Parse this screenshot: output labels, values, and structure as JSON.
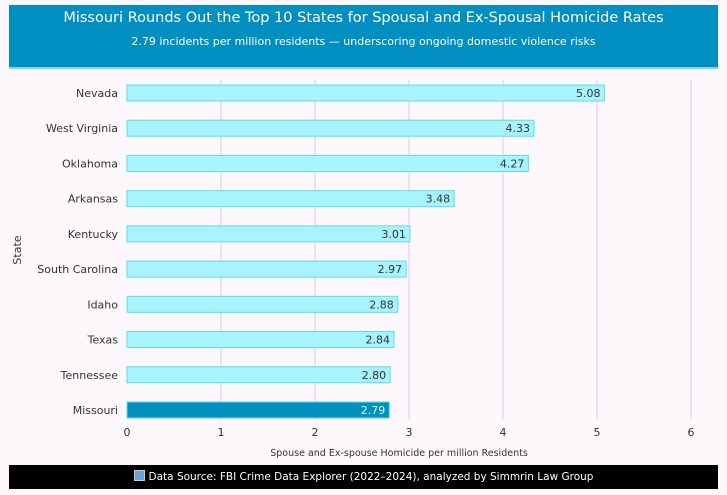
{
  "header": {
    "title": "Missouri Rounds Out the Top 10 States for Spousal and Ex-Spousal Homicide Rates",
    "subtitle": "2.79 incidents per million residents — underscoring ongoing domestic violence risks"
  },
  "footer": {
    "icon": "bar-chart-icon",
    "text": "Data Source: FBI Crime Data Explorer (2022–2024), analyzed by Simmrin Law Group"
  },
  "chart_data": {
    "type": "bar",
    "orientation": "horizontal",
    "categories": [
      "Nevada",
      "West Virginia",
      "Oklahoma",
      "Arkansas",
      "Kentucky",
      "South Carolina",
      "Idaho",
      "Texas",
      "Tennessee",
      "Missouri"
    ],
    "values": [
      5.08,
      4.33,
      4.27,
      3.48,
      3.01,
      2.97,
      2.88,
      2.84,
      2.8,
      2.79
    ],
    "labels": [
      "5.08",
      "4.33",
      "4.27",
      "3.48",
      "3.01",
      "2.97",
      "2.88",
      "2.84",
      "2.80",
      "2.79"
    ],
    "highlight": "Missouri",
    "xlabel": "Spouse and Ex-spouse Homicide per million Residents",
    "ylabel": "State",
    "xlim": [
      0,
      6
    ],
    "xticks": [
      "0",
      "1",
      "2",
      "3",
      "4",
      "5",
      "6"
    ],
    "grid": true,
    "colors": {
      "bar": "#a8f4fe",
      "bar_border": "#5fd8f0",
      "highlight": "#0090c0",
      "grid": "#ecc8dc"
    }
  }
}
